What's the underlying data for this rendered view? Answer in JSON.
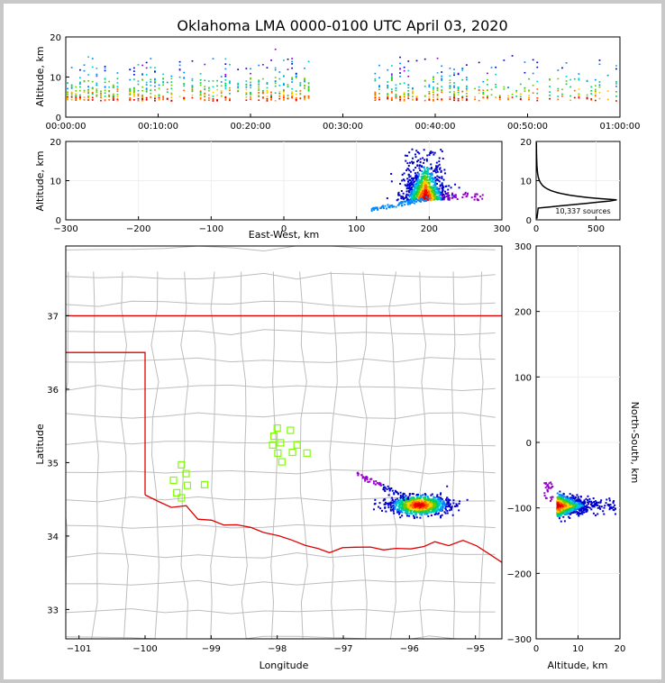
{
  "title": "Oklahoma LMA 0000-0100 UTC April 03, 2020",
  "source_count_label": "10,337 sources",
  "chart_data": [
    {
      "id": "time-height",
      "type": "scatter",
      "xlabel": "",
      "ylabel": "Altitude, km",
      "xticks": [
        "00:00:00",
        "00:10:00",
        "00:20:00",
        "00:30:00",
        "00:40:00",
        "00:50:00",
        "01:00:00"
      ],
      "xlim_minutes": [
        0,
        60
      ],
      "ylim": [
        0,
        20
      ],
      "yticks": [
        0,
        10,
        20
      ],
      "description_series": "VHF sources vs time, mostly 3-14 km altitude, gap 00:26-00:33"
    },
    {
      "id": "east-west-altitude",
      "type": "scatter",
      "xlabel": "East-West, km",
      "ylabel": "Altitude, km",
      "xlim": [
        -300,
        300
      ],
      "xticks": [
        -300,
        -200,
        -100,
        0,
        100,
        200,
        300
      ],
      "ylim": [
        0,
        20
      ],
      "yticks": [
        0,
        10,
        20
      ]
    },
    {
      "id": "altitude-histogram",
      "type": "line",
      "xlabel": "",
      "xlim": [
        0,
        700
      ],
      "xticks": [
        0,
        500
      ],
      "ylim": [
        0,
        20
      ],
      "yticks": [
        0,
        10,
        20
      ],
      "total_sources": 10337
    },
    {
      "id": "plan-view",
      "type": "scatter",
      "xlabel": "Longitude",
      "ylabel": "Latitude",
      "xlim": [
        -101.2,
        -94.6
      ],
      "xticks": [
        -101,
        -100,
        -99,
        -98,
        -97,
        -96,
        -95
      ],
      "ylim": [
        32.6,
        37.95
      ],
      "yticks": [
        33,
        34,
        35,
        36,
        37
      ],
      "stations": [
        {
          "lon": -98.0,
          "lat": 35.47
        },
        {
          "lon": -97.8,
          "lat": 35.44
        },
        {
          "lon": -98.05,
          "lat": 35.36
        },
        {
          "lon": -97.95,
          "lat": 35.27
        },
        {
          "lon": -98.07,
          "lat": 35.24
        },
        {
          "lon": -97.7,
          "lat": 35.24
        },
        {
          "lon": -97.77,
          "lat": 35.14
        },
        {
          "lon": -97.55,
          "lat": 35.13
        },
        {
          "lon": -97.99,
          "lat": 35.13
        },
        {
          "lon": -97.93,
          "lat": 35.01
        },
        {
          "lon": -99.45,
          "lat": 34.97
        },
        {
          "lon": -99.38,
          "lat": 34.85
        },
        {
          "lon": -99.57,
          "lat": 34.76
        },
        {
          "lon": -99.36,
          "lat": 34.69
        },
        {
          "lon": -99.1,
          "lat": 34.7
        },
        {
          "lon": -99.52,
          "lat": 34.59
        },
        {
          "lon": -99.45,
          "lat": 34.52
        }
      ],
      "storm_center": {
        "lon": -95.85,
        "lat": 34.42
      }
    },
    {
      "id": "altitude-north-south",
      "type": "scatter",
      "xlabel": "Altitude, km",
      "ylabel": "North-South, km",
      "xlim": [
        0,
        20
      ],
      "xticks": [
        0,
        10,
        20
      ],
      "ylim": [
        -300,
        300
      ],
      "yticks": [
        -300,
        -200,
        -100,
        0,
        100,
        200,
        300
      ]
    }
  ]
}
